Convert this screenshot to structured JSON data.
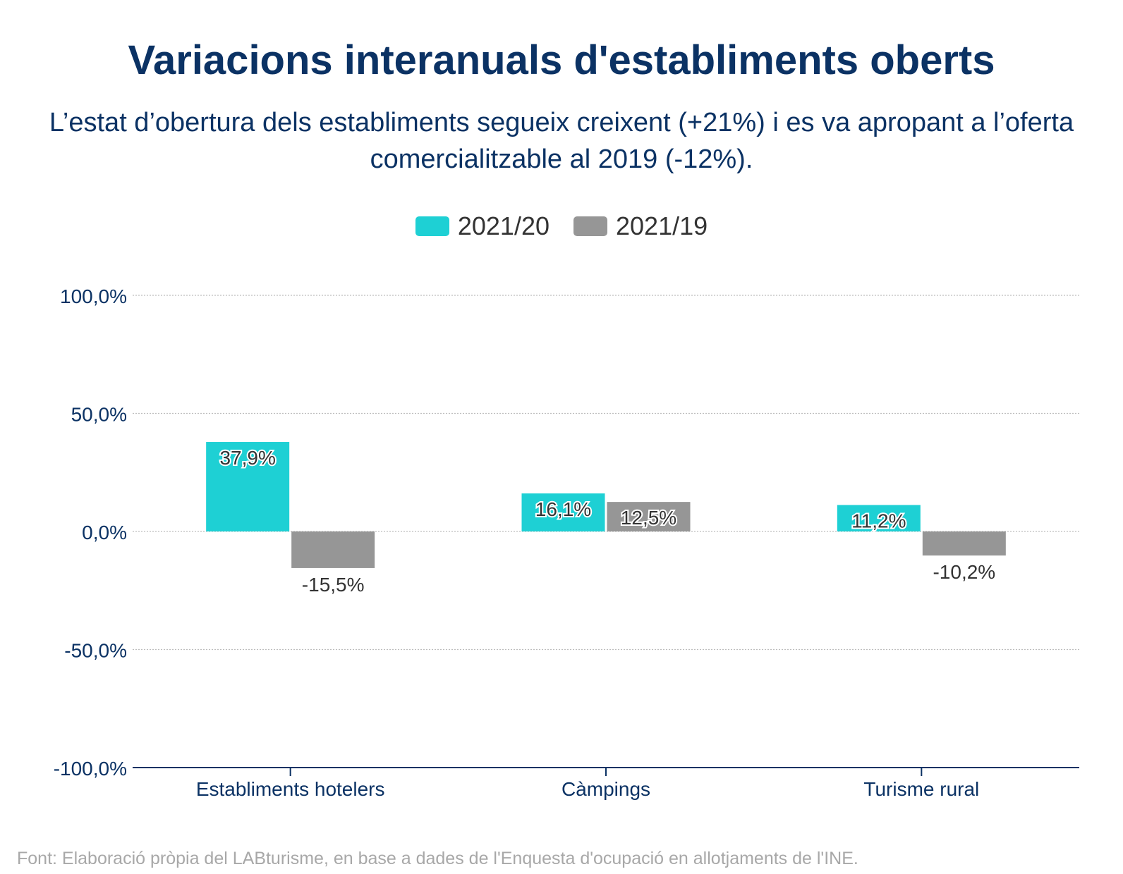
{
  "title": "Variacions interanuals d'establiments oberts",
  "subtitle": "L’estat d’obertura dels establiments segueix creixent (+21%) i es va apropant a l’oferta comercialitzable al 2019 (-12%).",
  "footnote": "Font: Elaboració pròpia del LABturisme, en base a dades de l'Enquesta d'ocupació en allotjaments de l'INE.",
  "colors": {
    "series1": "#1ed0d4",
    "series2": "#969696",
    "text_dark": "#0b3264",
    "label": "#333333"
  },
  "chart_data": {
    "type": "bar",
    "categories": [
      "Establiments hotelers",
      "Càmpings",
      "Turisme rural"
    ],
    "series": [
      {
        "name": "2021/20",
        "values": [
          37.9,
          16.1,
          11.2
        ],
        "labels": [
          "37,9%",
          "16,1%",
          "11,2%"
        ],
        "color": "#1ed0d4"
      },
      {
        "name": "2021/19",
        "values": [
          -15.5,
          12.5,
          -10.2
        ],
        "labels": [
          "-15,5%",
          "12,5%",
          "-10,2%"
        ],
        "color": "#969696"
      }
    ],
    "yticks": [
      100,
      50,
      0,
      -50,
      -100
    ],
    "ytick_labels": [
      "100,0%",
      "50,0%",
      "0,0%",
      "-50,0%",
      "-100,0%"
    ],
    "ylim": [
      -100,
      100
    ],
    "grid": true,
    "legend_position": "top-center"
  }
}
